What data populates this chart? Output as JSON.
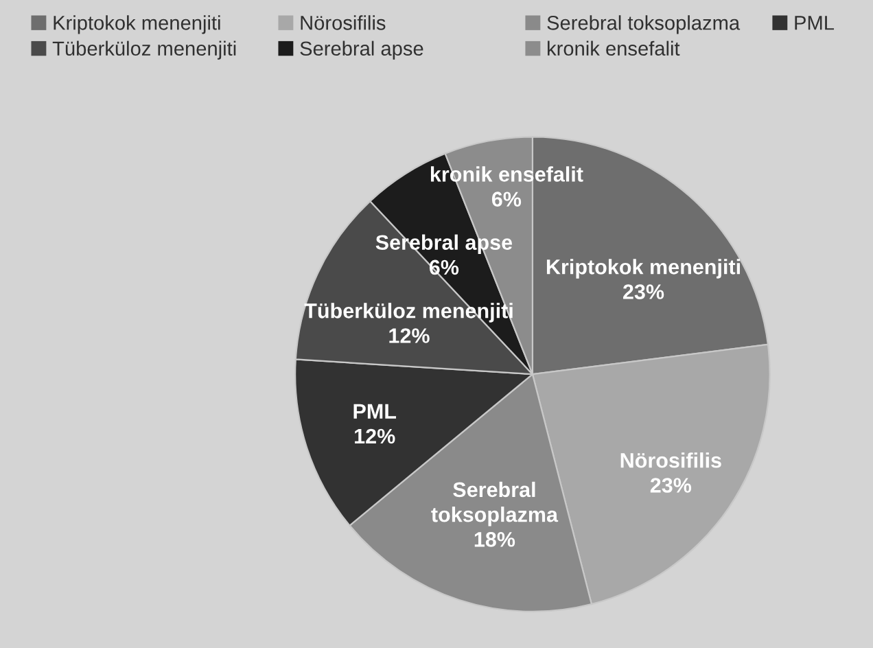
{
  "chart_data": {
    "type": "pie",
    "categories": [
      "Kriptokok menenjiti",
      "Nörosifilis",
      "Serebral toksoplazma",
      "PML",
      "Tüberküloz menenjiti",
      "Serebral apse",
      "kronik ensefalit"
    ],
    "values": [
      23,
      23,
      18,
      12,
      12,
      6,
      6
    ],
    "colors": [
      "#6e6e6e",
      "#a8a8a8",
      "#8a8a8a",
      "#323232",
      "#4a4a4a",
      "#1c1c1c",
      "#8c8c8c"
    ],
    "value_labels": [
      "23%",
      "23%",
      "18%",
      "12%",
      "12%",
      "6%",
      "6%"
    ],
    "legend": "top"
  }
}
